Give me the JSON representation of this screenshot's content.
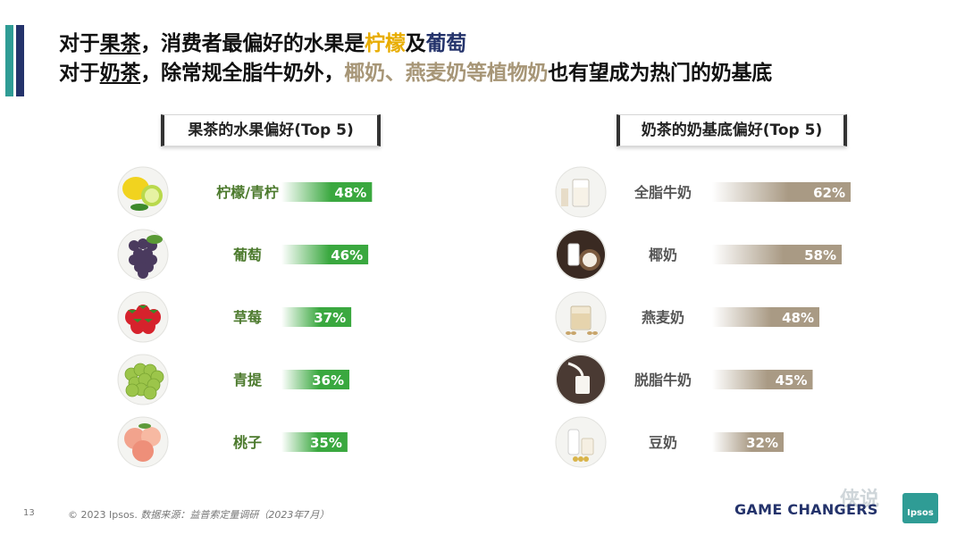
{
  "headline": {
    "line1": {
      "p1": "对于",
      "kw": "果茶",
      "p2": "，消费者最偏好的水果是",
      "f1": "柠檬",
      "p3": "及",
      "f2": "葡萄"
    },
    "line2": {
      "p1": "对于",
      "kw": "奶茶",
      "p2": "，除常规全脂牛奶外，",
      "m": "椰奶、燕麦奶等植物奶",
      "p3": "也有望成为热门的奶基底"
    }
  },
  "chart_data": [
    {
      "type": "bar",
      "title": "果茶的水果偏好(Top 5)",
      "categories": [
        "柠檬/青柠",
        "葡萄",
        "草莓",
        "青提",
        "桃子"
      ],
      "values": [
        48,
        46,
        37,
        36,
        35
      ],
      "value_labels": [
        "48%",
        "46%",
        "37%",
        "36%",
        "35%"
      ],
      "icons": [
        "lemon-icon",
        "grape-icon",
        "strawberry-icon",
        "green-grape-icon",
        "peach-icon"
      ],
      "bar_color": "#3aa83f",
      "label_color": "#4c7a2d"
    },
    {
      "type": "bar",
      "title": "奶茶的奶基底偏好(Top 5)",
      "categories": [
        "全脂牛奶",
        "椰奶",
        "燕麦奶",
        "脱脂牛奶",
        "豆奶"
      ],
      "values": [
        62,
        58,
        48,
        45,
        32
      ],
      "value_labels": [
        "62%",
        "58%",
        "48%",
        "45%",
        "32%"
      ],
      "icons": [
        "milk-glass-icon",
        "coconut-icon",
        "oat-milk-icon",
        "milk-pour-icon",
        "soy-milk-icon"
      ],
      "bar_color": "#a99a84",
      "label_color": "#555555"
    }
  ],
  "footer": {
    "page": "13",
    "copyright": "© 2023 Ipsos.",
    "source": "数据来源：益普索定量调研（2023年7月）",
    "brand": "GAME CHANGERS",
    "logo": "Ipsos",
    "watermark": "侠说"
  }
}
